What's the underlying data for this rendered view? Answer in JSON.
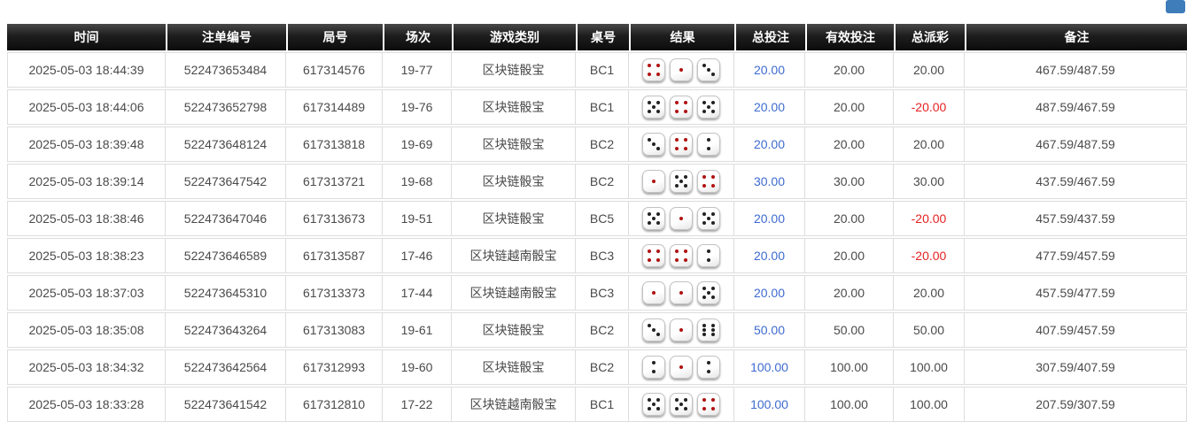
{
  "colors": {
    "link_blue": "#3e6bd0",
    "negative_red": "#e52222",
    "header_bg": "#1d1d1d",
    "pip_red": "#b01212",
    "pip_black": "#222222",
    "corner_button_blue": "#3e7cba"
  },
  "table": {
    "headers": [
      "时间",
      "注单编号",
      "局号",
      "场次",
      "游戏类别",
      "桌号",
      "结果",
      "总投注",
      "有效投注",
      "总派彩",
      "备注"
    ],
    "rows": [
      {
        "time": "2025-05-03 18:44:39",
        "bet_id": "522473653484",
        "round_id": "617314576",
        "session": "19-77",
        "game_type": "区块链骰宝",
        "table_no": "BC1",
        "dice": [
          {
            "value": 4,
            "color": "red"
          },
          {
            "value": 1,
            "color": "red"
          },
          {
            "value": 3,
            "color": "black"
          }
        ],
        "total_bet": "20.00",
        "valid_bet": "20.00",
        "payout": "20.00",
        "remark": "467.59/487.59"
      },
      {
        "time": "2025-05-03 18:44:06",
        "bet_id": "522473652798",
        "round_id": "617314489",
        "session": "19-76",
        "game_type": "区块链骰宝",
        "table_no": "BC1",
        "dice": [
          {
            "value": 5,
            "color": "black"
          },
          {
            "value": 4,
            "color": "red"
          },
          {
            "value": 5,
            "color": "black"
          }
        ],
        "total_bet": "20.00",
        "valid_bet": "20.00",
        "payout": "-20.00",
        "remark": "487.59/467.59"
      },
      {
        "time": "2025-05-03 18:39:48",
        "bet_id": "522473648124",
        "round_id": "617313818",
        "session": "19-69",
        "game_type": "区块链骰宝",
        "table_no": "BC2",
        "dice": [
          {
            "value": 3,
            "color": "black"
          },
          {
            "value": 4,
            "color": "red"
          },
          {
            "value": 2,
            "color": "black"
          }
        ],
        "total_bet": "20.00",
        "valid_bet": "20.00",
        "payout": "20.00",
        "remark": "467.59/487.59"
      },
      {
        "time": "2025-05-03 18:39:14",
        "bet_id": "522473647542",
        "round_id": "617313721",
        "session": "19-68",
        "game_type": "区块链骰宝",
        "table_no": "BC2",
        "dice": [
          {
            "value": 1,
            "color": "red"
          },
          {
            "value": 5,
            "color": "black"
          },
          {
            "value": 4,
            "color": "red"
          }
        ],
        "total_bet": "30.00",
        "valid_bet": "30.00",
        "payout": "30.00",
        "remark": "437.59/467.59"
      },
      {
        "time": "2025-05-03 18:38:46",
        "bet_id": "522473647046",
        "round_id": "617313673",
        "session": "19-51",
        "game_type": "区块链骰宝",
        "table_no": "BC5",
        "dice": [
          {
            "value": 5,
            "color": "black"
          },
          {
            "value": 1,
            "color": "red"
          },
          {
            "value": 5,
            "color": "black"
          }
        ],
        "total_bet": "20.00",
        "valid_bet": "20.00",
        "payout": "-20.00",
        "remark": "457.59/437.59"
      },
      {
        "time": "2025-05-03 18:38:23",
        "bet_id": "522473646589",
        "round_id": "617313587",
        "session": "17-46",
        "game_type": "区块链越南骰宝",
        "table_no": "BC3",
        "dice": [
          {
            "value": 4,
            "color": "red"
          },
          {
            "value": 4,
            "color": "red"
          },
          {
            "value": 2,
            "color": "black"
          }
        ],
        "total_bet": "20.00",
        "valid_bet": "20.00",
        "payout": "-20.00",
        "remark": "477.59/457.59"
      },
      {
        "time": "2025-05-03 18:37:03",
        "bet_id": "522473645310",
        "round_id": "617313373",
        "session": "17-44",
        "game_type": "区块链越南骰宝",
        "table_no": "BC3",
        "dice": [
          {
            "value": 1,
            "color": "red"
          },
          {
            "value": 1,
            "color": "red"
          },
          {
            "value": 5,
            "color": "black"
          }
        ],
        "total_bet": "20.00",
        "valid_bet": "20.00",
        "payout": "20.00",
        "remark": "457.59/477.59"
      },
      {
        "time": "2025-05-03 18:35:08",
        "bet_id": "522473643264",
        "round_id": "617313083",
        "session": "19-61",
        "game_type": "区块链骰宝",
        "table_no": "BC2",
        "dice": [
          {
            "value": 3,
            "color": "black"
          },
          {
            "value": 1,
            "color": "red"
          },
          {
            "value": 6,
            "color": "black"
          }
        ],
        "total_bet": "50.00",
        "valid_bet": "50.00",
        "payout": "50.00",
        "remark": "407.59/457.59"
      },
      {
        "time": "2025-05-03 18:34:32",
        "bet_id": "522473642564",
        "round_id": "617312993",
        "session": "19-60",
        "game_type": "区块链骰宝",
        "table_no": "BC2",
        "dice": [
          {
            "value": 2,
            "color": "black"
          },
          {
            "value": 1,
            "color": "red"
          },
          {
            "value": 2,
            "color": "black"
          }
        ],
        "total_bet": "100.00",
        "valid_bet": "100.00",
        "payout": "100.00",
        "remark": "307.59/407.59"
      },
      {
        "time": "2025-05-03 18:33:28",
        "bet_id": "522473641542",
        "round_id": "617312810",
        "session": "17-22",
        "game_type": "区块链越南骰宝",
        "table_no": "BC1",
        "dice": [
          {
            "value": 5,
            "color": "black"
          },
          {
            "value": 5,
            "color": "black"
          },
          {
            "value": 4,
            "color": "red"
          }
        ],
        "total_bet": "100.00",
        "valid_bet": "100.00",
        "payout": "100.00",
        "remark": "207.59/307.59"
      }
    ]
  }
}
